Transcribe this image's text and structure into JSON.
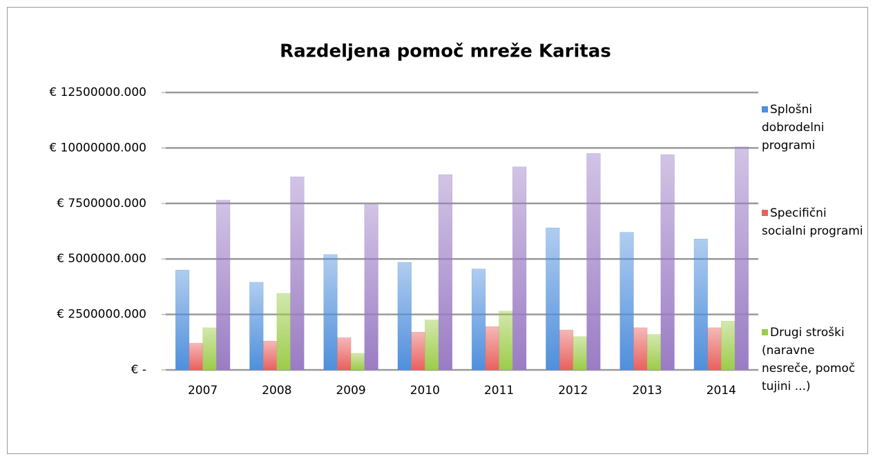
{
  "chart_data": {
    "type": "bar",
    "title": "Razdeljena pomoč mreže Karitas",
    "categories": [
      "2007",
      "2008",
      "2009",
      "2010",
      "2011",
      "2012",
      "2013",
      "2014"
    ],
    "series": [
      {
        "name": "Splošni dobrodelni programi",
        "color": "#4f8fdc",
        "values": [
          4500000,
          3950000,
          5200000,
          4850000,
          4550000,
          6400000,
          6200000,
          5900000
        ]
      },
      {
        "name": "Specifični socialni programi",
        "color": "#e8615e",
        "values": [
          1200000,
          1300000,
          1450000,
          1700000,
          1950000,
          1800000,
          1900000,
          1900000
        ]
      },
      {
        "name": "Drugi stroški (naravne nesreče, pomoč tujini ...)",
        "color": "#9ccc4a",
        "values": [
          1900000,
          3450000,
          750000,
          2250000,
          2650000,
          1500000,
          1600000,
          2200000
        ]
      },
      {
        "color": "#9a7cc4",
        "values": [
          7650000,
          8700000,
          7450000,
          8800000,
          9150000,
          9750000,
          9700000,
          10050000
        ]
      }
    ],
    "ylim": [
      0,
      12500000
    ],
    "yticks": [
      {
        "value": 0,
        "label": "€ -"
      },
      {
        "value": 2500000,
        "label": "€ 2500000.000"
      },
      {
        "value": 5000000,
        "label": "€ 5000000.000"
      },
      {
        "value": 7500000,
        "label": "€ 7500000.000"
      },
      {
        "value": 10000000,
        "label": "€ 10000000.000"
      },
      {
        "value": 12500000,
        "label": "€ 12500000.000"
      }
    ],
    "grid": true,
    "legend": "right"
  }
}
